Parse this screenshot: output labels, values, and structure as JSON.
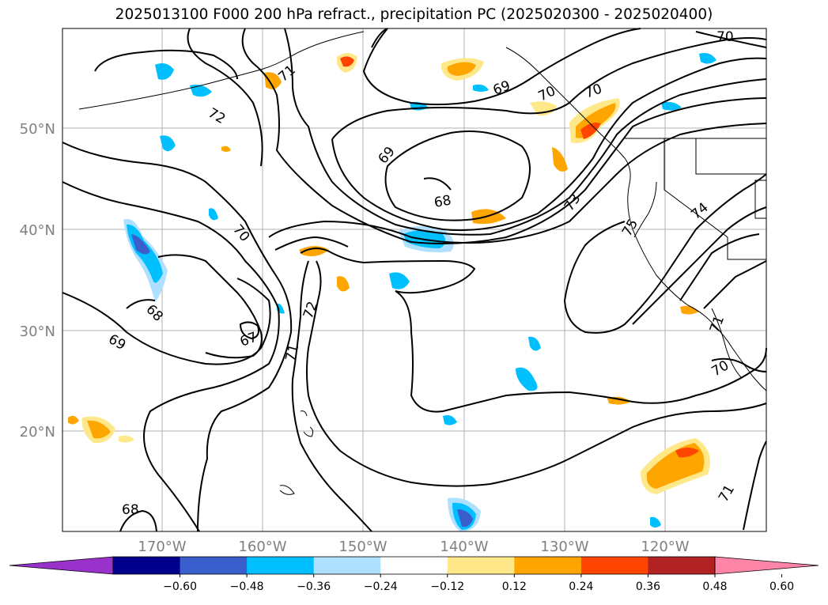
{
  "title": "2025013100 F000 200 hPa refract., precipitation PC (2025020300 - 2025020400)",
  "lat_labels": [
    "50°N",
    "40°N",
    "30°N",
    "20°N"
  ],
  "lon_labels": [
    "170°W",
    "160°W",
    "150°W",
    "140°W",
    "130°W",
    "120°W"
  ],
  "contour_labels": [
    "72",
    "71",
    "69",
    "68",
    "70",
    "69",
    "70",
    "73",
    "74",
    "75",
    "70",
    "70",
    "68",
    "67",
    "69",
    "72",
    "71",
    "70",
    "71",
    "71",
    "68"
  ],
  "colorbar": {
    "colors": [
      "#9932cc",
      "#00008b",
      "#3a5fcd",
      "#00bfff",
      "#b0e0ff",
      "#ffffff",
      "#ffe88a",
      "#ffa500",
      "#ff4500",
      "#b22222",
      "#ff85a8"
    ],
    "ticks": [
      "-0.60",
      "-0.48",
      "-0.36",
      "-0.24",
      "-0.12",
      "0.12",
      "0.24",
      "0.36",
      "0.48",
      "0.60"
    ]
  }
}
